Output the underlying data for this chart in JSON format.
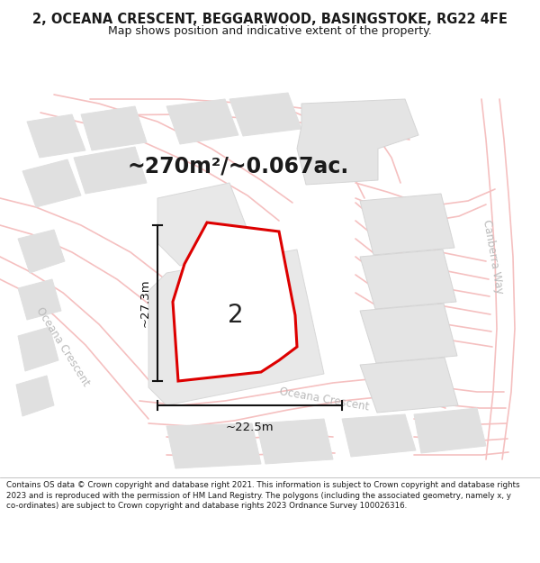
{
  "title_line1": "2, OCEANA CRESCENT, BEGGARWOOD, BASINGSTOKE, RG22 4FE",
  "title_line2": "Map shows position and indicative extent of the property.",
  "area_label": "~270m²/~0.067ac.",
  "property_number": "2",
  "dim_height": "~27.3m",
  "dim_width": "~22.5m",
  "road_label_left": "Oceana Crescent",
  "road_label_right": "Oceana Crescent",
  "road_label_far_right": "Canberra Way",
  "footer_text": "Contains OS data © Crown copyright and database right 2021. This information is subject to Crown copyright and database rights 2023 and is reproduced with the permission of HM Land Registry. The polygons (including the associated geometry, namely x, y co-ordinates) are subject to Crown copyright and database rights 2023 Ordnance Survey 100026316.",
  "map_bg": "#ffffff",
  "road_color": "#f5c0c0",
  "building_color": "#e0e0e0",
  "building_edge": "#e0e0e0",
  "property_fill": "#ffffff",
  "property_edge": "#dd0000",
  "text_color": "#1a1a1a",
  "dim_color": "#111111",
  "road_label_color": "#bbbbbb",
  "footer_bg": "#ffffff",
  "title_bg": "#ffffff",
  "title_fontsize": 10.5,
  "subtitle_fontsize": 9.0,
  "area_fontsize": 17,
  "footer_fontsize": 6.3,
  "prop_num_fontsize": 20,
  "dim_fontsize": 9.5,
  "road_label_fontsize": 8.5
}
